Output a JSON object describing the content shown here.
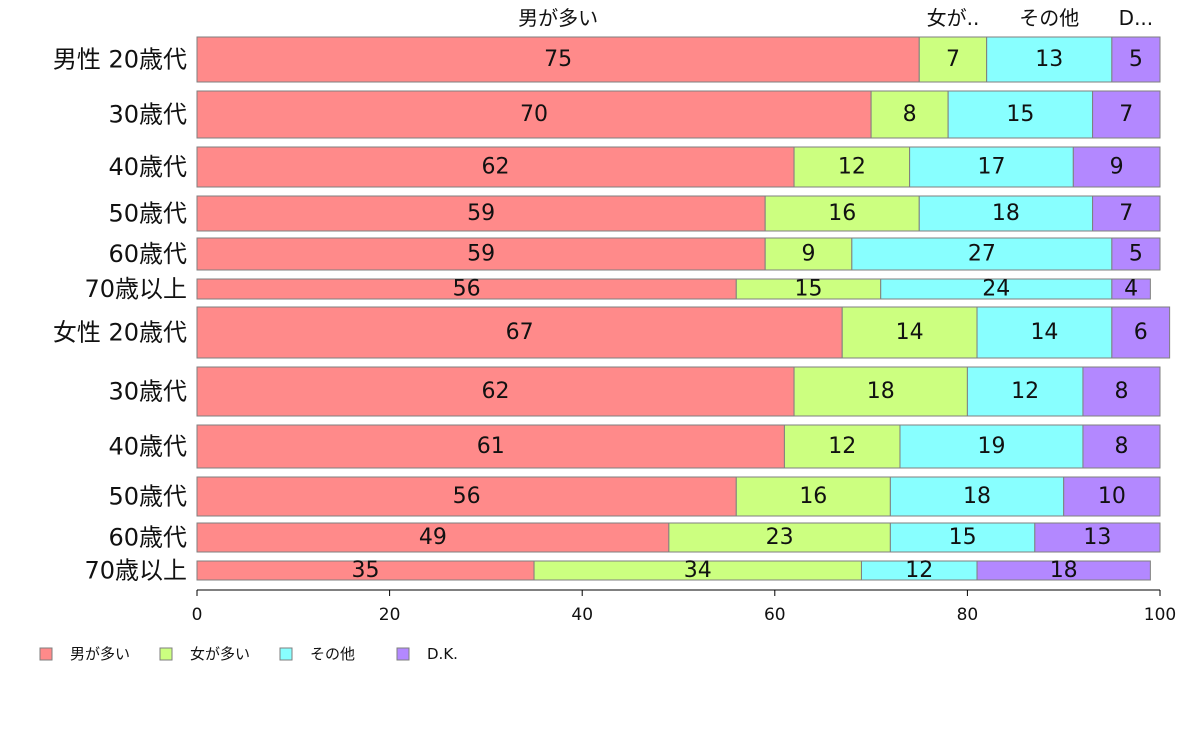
{
  "chart_data": {
    "type": "bar",
    "orientation": "horizontal",
    "stacked": true,
    "xlim": [
      0,
      100
    ],
    "xticks": [
      "0",
      "20",
      "40",
      "60",
      "80",
      "100"
    ],
    "grid": false,
    "legend_position": "bottom-left",
    "column_headers": [
      "男が多い",
      "女が..",
      "その他",
      "D..."
    ],
    "categories": [
      "男性 20歳代",
      "30歳代",
      "40歳代",
      "50歳代",
      "60歳代",
      "70歳以上",
      "女性 20歳代",
      "30歳代",
      "40歳代",
      "50歳代",
      "60歳代",
      "70歳以上"
    ],
    "series": [
      {
        "name": "男が多い",
        "color": "#ff8a8a",
        "values": [
          75,
          70,
          62,
          59,
          59,
          56,
          67,
          62,
          61,
          56,
          49,
          35
        ]
      },
      {
        "name": "女が多い",
        "color": "#ccff80",
        "values": [
          7,
          8,
          12,
          16,
          9,
          15,
          14,
          18,
          12,
          16,
          23,
          34
        ]
      },
      {
        "name": "その他",
        "color": "#88ffff",
        "values": [
          13,
          15,
          17,
          18,
          27,
          24,
          14,
          12,
          19,
          18,
          15,
          12
        ]
      },
      {
        "name": "D.K.",
        "color": "#b388ff",
        "values": [
          5,
          7,
          9,
          7,
          5,
          4,
          6,
          8,
          8,
          10,
          13,
          18
        ]
      }
    ]
  }
}
